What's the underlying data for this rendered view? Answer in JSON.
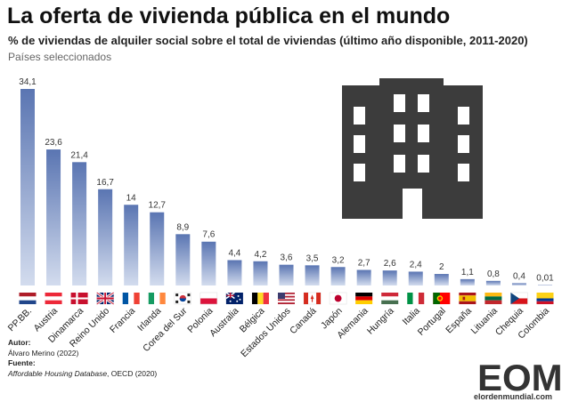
{
  "header": {
    "title": "La oferta de vivienda pública en el mundo",
    "subtitle": "% de viviendas de alquiler social sobre el total de viviendas (último año disponible, 2011-2020)",
    "note": "Países seleccionados"
  },
  "credits": {
    "author_label": "Autor:",
    "author": "Álvaro Merino (2022)",
    "source_label": "Fuente:",
    "source_title": "Affordable Housing Database",
    "source_rest": ", OECD (2020)"
  },
  "logo": {
    "mark": "EOM",
    "site": "elordenmundial.com",
    "icon": "building-icon"
  },
  "colors": {
    "bar_top": "#5a75b2",
    "bar_bottom": "#d3dcee",
    "text": "#222222",
    "icon": "#3c3c3c"
  },
  "chart_data": {
    "type": "bar",
    "title": "La oferta de vivienda pública en el mundo",
    "categories": [
      "PP.BB.",
      "Austria",
      "Dinamarca",
      "Reino Unido",
      "Francia",
      "Irlanda",
      "Corea del Sur",
      "Polonia",
      "Australia",
      "Bélgica",
      "Estados Unidos",
      "Canadá",
      "Japón",
      "Alemania",
      "Hungría",
      "Italia",
      "Portugal",
      "España",
      "Lituania",
      "Chequia",
      "Colombia"
    ],
    "values": [
      34.1,
      23.6,
      21.4,
      16.7,
      14,
      12.7,
      8.9,
      7.6,
      4.4,
      4.2,
      3.6,
      3.5,
      3.2,
      2.7,
      2.6,
      2.4,
      2,
      1.1,
      0.8,
      0.4,
      0.01
    ],
    "value_labels": [
      "34,1",
      "23,6",
      "21,4",
      "16,7",
      "14",
      "12,7",
      "8,9",
      "7,6",
      "4,4",
      "4,2",
      "3,6",
      "3,5",
      "3,2",
      "2,7",
      "2,6",
      "2,4",
      "2",
      "1,1",
      "0,8",
      "0,4",
      "0,01"
    ],
    "flags": [
      "netherlands",
      "austria",
      "denmark",
      "united-kingdom",
      "france",
      "ireland",
      "south-korea",
      "poland",
      "australia",
      "belgium",
      "united-states",
      "canada",
      "japan",
      "germany",
      "hungary",
      "italy",
      "portugal",
      "spain",
      "lithuania",
      "czechia",
      "colombia"
    ],
    "xlabel": "",
    "ylabel": "",
    "ylim": [
      0,
      34.1
    ],
    "grid": false,
    "legend": "none"
  }
}
